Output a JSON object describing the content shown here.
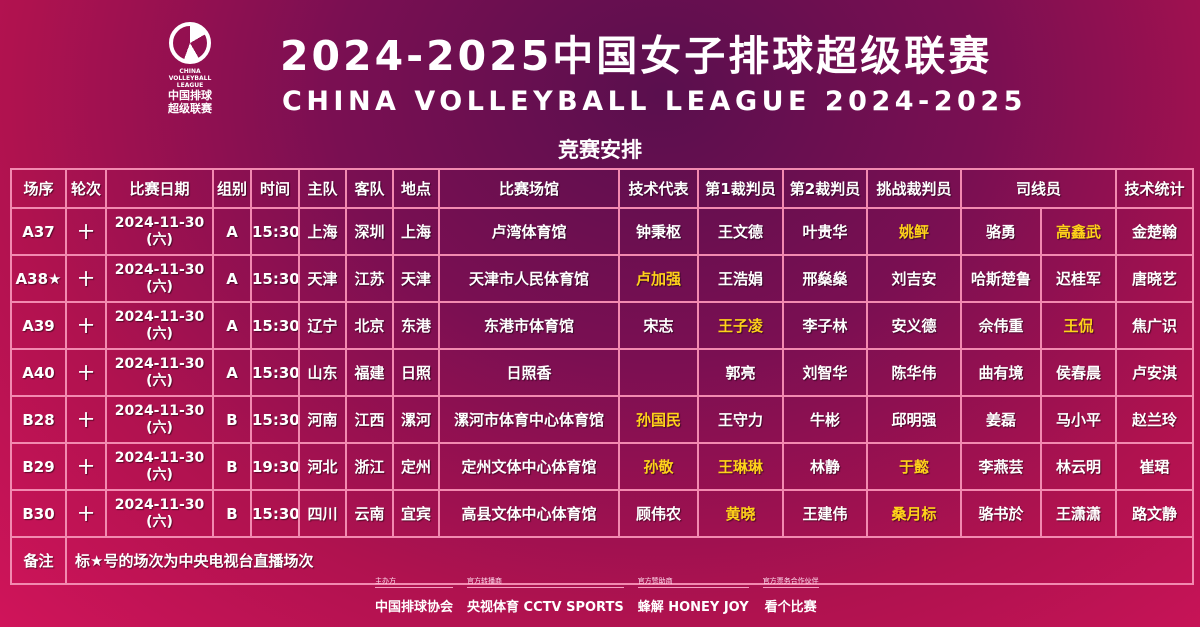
{
  "logo": {
    "en": "CHINA VOLLEYBALL LEAGUE",
    "cn1": "中国排球",
    "cn2": "超级联赛"
  },
  "title": "2024-2025中国女子排球超级联赛",
  "subtitle": "CHINA VOLLEYBALL LEAGUE 2024-2025",
  "section": "竞赛安排",
  "highlight_color": "#ffd21a",
  "table": {
    "headers": [
      "场序",
      "轮次",
      "比赛日期",
      "组别",
      "时间",
      "主队",
      "客队",
      "地点",
      "比赛场馆",
      "技术代表",
      "第1裁判员",
      "第2裁判员",
      "挑战裁判员",
      "司线员",
      "技术统计"
    ],
    "rows": [
      {
        "cells": [
          "A37",
          "十",
          "2024-11-30",
          "(六)",
          "A",
          "15:30",
          "上海",
          "深圳",
          "上海",
          "卢湾体育馆",
          "钟秉枢",
          "王文德",
          "叶贵华",
          "姚鲆",
          "骆勇",
          "高鑫武",
          "金楚翰"
        ],
        "highlight": [
          13,
          15
        ]
      },
      {
        "cells": [
          "A38★",
          "十",
          "2024-11-30",
          "(六)",
          "A",
          "15:30",
          "天津",
          "江苏",
          "天津",
          "天津市人民体育馆",
          "卢加强",
          "王浩娟",
          "邢燊燊",
          "刘吉安",
          "哈斯楚鲁",
          "迟桂军",
          "唐晓艺"
        ],
        "highlight": [
          10
        ]
      },
      {
        "cells": [
          "A39",
          "十",
          "2024-11-30",
          "(六)",
          "A",
          "15:30",
          "辽宁",
          "北京",
          "东港",
          "东港市体育馆",
          "宋志",
          "王子凌",
          "李子林",
          "安义德",
          "佘伟重",
          "王侃",
          "焦广识"
        ],
        "highlight": [
          11,
          15
        ]
      },
      {
        "cells": [
          "A40",
          "十",
          "2024-11-30",
          "(六)",
          "A",
          "15:30",
          "山东",
          "福建",
          "日照",
          "日照香",
          "",
          "郭亮",
          "刘智华",
          "陈华伟",
          "曲有境",
          "侯春晨",
          "卢安淇"
        ],
        "highlight": []
      },
      {
        "cells": [
          "B28",
          "十",
          "2024-11-30",
          "(六)",
          "B",
          "15:30",
          "河南",
          "江西",
          "漯河",
          "漯河市体育中心体育馆",
          "孙国民",
          "王守力",
          "牛彬",
          "邱明强",
          "姜磊",
          "马小平",
          "赵兰玲"
        ],
        "highlight": [
          10
        ]
      },
      {
        "cells": [
          "B29",
          "十",
          "2024-11-30",
          "(六)",
          "B",
          "19:30",
          "河北",
          "浙江",
          "定州",
          "定州文体中心体育馆",
          "孙敬",
          "王琳琳",
          "林静",
          "于懿",
          "李燕芸",
          "林云明",
          "崔珺"
        ],
        "highlight": [
          10,
          11,
          13
        ]
      },
      {
        "cells": [
          "B30",
          "十",
          "2024-11-30",
          "(六)",
          "B",
          "15:30",
          "四川",
          "云南",
          "宜宾",
          "高县文体中心体育馆",
          "顾伟农",
          "黄晓",
          "王建伟",
          "桑月标",
          "骆书於",
          "王潇潇",
          "路文静"
        ],
        "highlight": [
          11,
          13
        ]
      }
    ],
    "note_label": "备注",
    "note": "标★号的场次为中央电视台直播场次"
  },
  "footer": [
    {
      "label": "主办方",
      "name": "中国排球协会"
    },
    {
      "label": "官方转播商",
      "name": "央视体育 CCTV SPORTS"
    },
    {
      "label": "官方赞助商",
      "name": "蜂解 HONEY JOY"
    },
    {
      "label": "官方票务合作伙伴",
      "name": "看个比赛"
    }
  ]
}
